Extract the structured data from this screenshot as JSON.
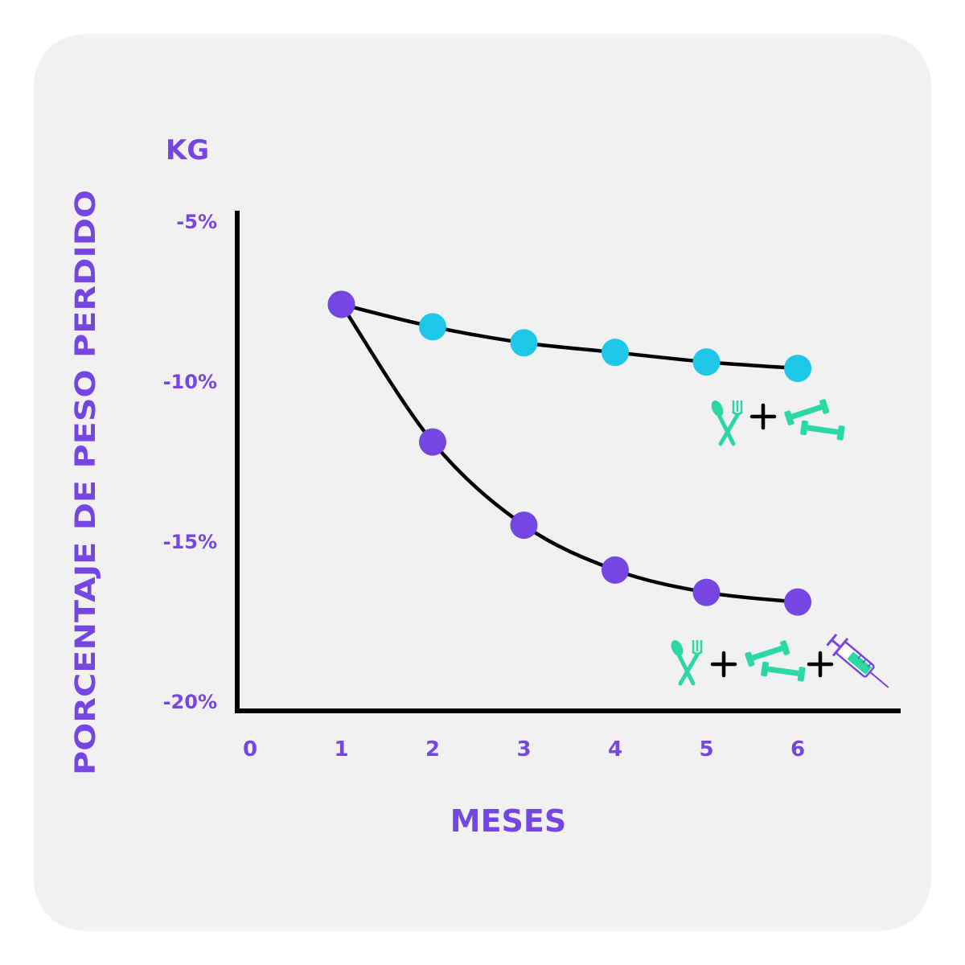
{
  "colors": {
    "background": "#f1f1f1",
    "accent_purple": "#7646e3",
    "series_cyan": "#1ec7e8",
    "series_purple": "#7646e3",
    "icon_green": "#2bd8a3",
    "axis": "#000000"
  },
  "chart_data": {
    "type": "line",
    "title": "",
    "unit_label": "KG",
    "ylabel": "PORCENTAJE DE PESO PERDIDO",
    "xlabel": "MESES",
    "x_ticks": [
      "0",
      "1",
      "2",
      "3",
      "4",
      "5",
      "6"
    ],
    "y_ticks": [
      "-5%",
      "-10%",
      "-15%",
      "-20%"
    ],
    "xlim": [
      0,
      7
    ],
    "ylim": [
      -20,
      -5
    ],
    "grid": false,
    "series": [
      {
        "color": "#1ec7e8",
        "icons": [
          "fork-knife-icon",
          "dumbbell-icon"
        ],
        "x": [
          1,
          2,
          3,
          4,
          5,
          6
        ],
        "y": [
          -7.6,
          -8.3,
          -8.8,
          -9.1,
          -9.4,
          -9.6
        ]
      },
      {
        "color": "#7646e3",
        "icons": [
          "fork-knife-icon",
          "dumbbell-icon",
          "syringe-icon"
        ],
        "x": [
          1,
          2,
          3,
          4,
          5,
          6
        ],
        "y": [
          -7.6,
          -11.9,
          -14.5,
          -15.9,
          -16.6,
          -16.9
        ]
      }
    ]
  }
}
